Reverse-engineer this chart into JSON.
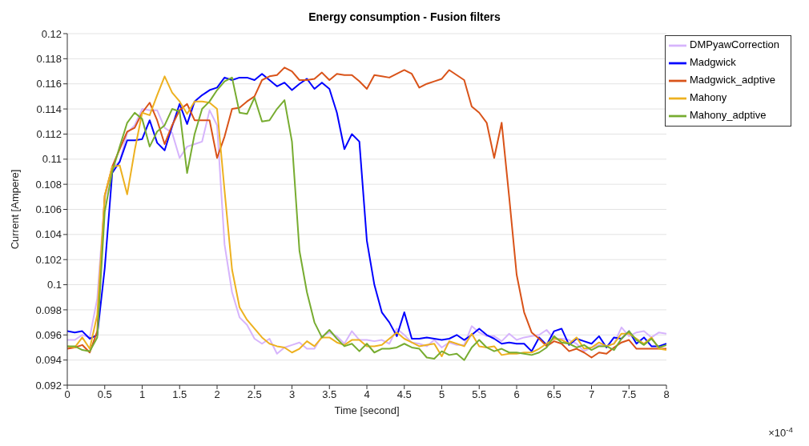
{
  "chart_data": {
    "type": "line",
    "title": "Energy consumption - Fusion filters",
    "xlabel": "Time [second]",
    "ylabel": "Current [Ampere]",
    "annotations": [
      "×10$^{-4}$"
    ],
    "x": [
      0,
      0.1,
      0.2,
      0.3,
      0.4,
      0.5,
      0.6,
      0.7,
      0.8,
      0.9,
      1,
      1.1,
      1.2,
      1.3,
      1.4,
      1.5,
      1.6,
      1.7,
      1.8,
      1.9,
      2,
      2.1,
      2.2,
      2.3,
      2.4,
      2.5,
      2.6,
      2.7,
      2.8,
      2.9,
      3,
      3.1,
      3.2,
      3.3,
      3.4,
      3.5,
      3.6,
      3.7,
      3.8,
      3.9,
      4,
      4.1,
      4.2,
      4.3,
      4.4,
      4.5,
      4.6,
      4.7,
      4.8,
      4.9,
      5,
      5.1,
      5.2,
      5.3,
      5.4,
      5.5,
      5.6,
      5.7,
      5.8,
      5.9,
      6,
      6.1,
      6.2,
      6.3,
      6.4,
      6.5,
      6.6,
      6.7,
      6.8,
      6.9,
      7,
      7.1,
      7.2,
      7.3,
      7.4,
      7.5,
      7.6,
      7.7,
      7.8,
      7.9,
      8
    ],
    "series": [
      {
        "name": "DMPyawCorrection",
        "color": "#d6b4fc",
        "values": [
          0.0956,
          0.0956,
          0.096,
          0.0958,
          0.0989,
          0.1069,
          0.1093,
          0.1098,
          0.1121,
          0.1127,
          0.114,
          0.1139,
          0.1139,
          0.1125,
          0.1121,
          0.1101,
          0.111,
          0.1112,
          0.1114,
          0.1139,
          0.1127,
          0.1032,
          0.0994,
          0.0974,
          0.0968,
          0.0957,
          0.0953,
          0.0957,
          0.0945,
          0.095,
          0.0952,
          0.0954,
          0.0949,
          0.0949,
          0.0959,
          0.0962,
          0.0959,
          0.0953,
          0.0963,
          0.0956,
          0.0956,
          0.0955,
          0.0956,
          0.0953,
          0.0965,
          0.096,
          0.0954,
          0.0953,
          0.0951,
          0.0956,
          0.095,
          0.0954,
          0.0952,
          0.0952,
          0.0967,
          0.0962,
          0.0959,
          0.0959,
          0.0955,
          0.0961,
          0.0956,
          0.0958,
          0.0959,
          0.096,
          0.0964,
          0.0957,
          0.0957,
          0.0956,
          0.0953,
          0.0947,
          0.095,
          0.0952,
          0.0951,
          0.0953,
          0.0966,
          0.0959,
          0.0962,
          0.0963,
          0.0958,
          0.0962,
          0.0961
        ]
      },
      {
        "name": "Madgwick",
        "color": "#0000ff",
        "values": [
          0.0963,
          0.0962,
          0.0963,
          0.0957,
          0.096,
          0.1013,
          0.1089,
          0.1098,
          0.1115,
          0.1115,
          0.1116,
          0.1131,
          0.1113,
          0.1107,
          0.1126,
          0.1144,
          0.1128,
          0.1146,
          0.1151,
          0.1155,
          0.1157,
          0.1165,
          0.1163,
          0.1165,
          0.1165,
          0.1163,
          0.1168,
          0.1163,
          0.1158,
          0.1161,
          0.1155,
          0.116,
          0.1164,
          0.1156,
          0.1161,
          0.1156,
          0.1137,
          0.1108,
          0.112,
          0.1114,
          0.1035,
          0.1,
          0.0978,
          0.097,
          0.0959,
          0.0978,
          0.0957,
          0.0957,
          0.0958,
          0.0957,
          0.0956,
          0.0957,
          0.096,
          0.0956,
          0.096,
          0.0965,
          0.096,
          0.0957,
          0.0953,
          0.0954,
          0.0953,
          0.0953,
          0.0947,
          0.0958,
          0.0952,
          0.0963,
          0.0965,
          0.0952,
          0.0957,
          0.0955,
          0.0953,
          0.0959,
          0.095,
          0.0958,
          0.0957,
          0.0963,
          0.0953,
          0.0958,
          0.0951,
          0.0951,
          0.0953
        ]
      },
      {
        "name": "Madgwick_adptive",
        "color": "#d95319",
        "values": [
          0.0949,
          0.095,
          0.0952,
          0.0946,
          0.0963,
          0.1071,
          0.1094,
          0.1108,
          0.1122,
          0.1125,
          0.1137,
          0.1145,
          0.1131,
          0.1112,
          0.1127,
          0.1139,
          0.1144,
          0.1131,
          0.1131,
          0.1131,
          0.1101,
          0.1118,
          0.114,
          0.1141,
          0.1146,
          0.115,
          0.1163,
          0.1166,
          0.1167,
          0.1173,
          0.117,
          0.1163,
          0.1163,
          0.1164,
          0.1169,
          0.1163,
          0.1168,
          0.1167,
          0.1167,
          0.1162,
          0.1156,
          0.1167,
          0.1166,
          0.1165,
          0.1168,
          0.1171,
          0.1168,
          0.1157,
          0.116,
          0.1162,
          0.1164,
          0.1171,
          0.1167,
          0.1163,
          0.1142,
          0.1137,
          0.1129,
          0.1101,
          0.1129,
          0.107,
          0.1008,
          0.0978,
          0.0962,
          0.0957,
          0.0951,
          0.0955,
          0.0953,
          0.0947,
          0.0949,
          0.0946,
          0.0942,
          0.0946,
          0.0945,
          0.095,
          0.0954,
          0.0956,
          0.0949,
          0.0949,
          0.0949,
          0.0949,
          0.0949
        ]
      },
      {
        "name": "Mahony",
        "color": "#edb120",
        "values": [
          0.0951,
          0.095,
          0.0958,
          0.0949,
          0.0976,
          0.1071,
          0.1094,
          0.1095,
          0.1072,
          0.1107,
          0.1137,
          0.1135,
          0.1151,
          0.1166,
          0.1153,
          0.1146,
          0.1136,
          0.1146,
          0.1146,
          0.1145,
          0.114,
          0.1075,
          0.1012,
          0.0982,
          0.0972,
          0.0965,
          0.0958,
          0.0953,
          0.0951,
          0.095,
          0.0946,
          0.0949,
          0.0955,
          0.0951,
          0.0958,
          0.0958,
          0.0954,
          0.0952,
          0.0956,
          0.0956,
          0.0951,
          0.0951,
          0.0952,
          0.0957,
          0.0962,
          0.0957,
          0.0954,
          0.0951,
          0.0952,
          0.0953,
          0.0943,
          0.0955,
          0.0953,
          0.0951,
          0.0961,
          0.0951,
          0.095,
          0.0951,
          0.0944,
          0.0945,
          0.0945,
          0.0946,
          0.0946,
          0.0949,
          0.0953,
          0.0957,
          0.0956,
          0.0953,
          0.0958,
          0.0949,
          0.095,
          0.0954,
          0.0951,
          0.0953,
          0.0961,
          0.0961,
          0.0957,
          0.0953,
          0.0958,
          0.0949,
          0.0948
        ]
      },
      {
        "name": "Mahony_adptive",
        "color": "#77ac30",
        "values": [
          0.0951,
          0.0951,
          0.0948,
          0.0947,
          0.0958,
          0.1058,
          0.109,
          0.111,
          0.1129,
          0.1137,
          0.1132,
          0.111,
          0.1122,
          0.1127,
          0.114,
          0.1138,
          0.1089,
          0.112,
          0.114,
          0.1146,
          0.1155,
          0.1162,
          0.1165,
          0.1137,
          0.1136,
          0.1149,
          0.113,
          0.1131,
          0.114,
          0.1147,
          0.1114,
          0.1027,
          0.0994,
          0.097,
          0.0958,
          0.0964,
          0.0957,
          0.0951,
          0.0953,
          0.0947,
          0.0953,
          0.0946,
          0.0949,
          0.0949,
          0.095,
          0.0953,
          0.095,
          0.0949,
          0.0942,
          0.0941,
          0.0947,
          0.0944,
          0.0945,
          0.094,
          0.095,
          0.0956,
          0.095,
          0.0947,
          0.0949,
          0.0946,
          0.0946,
          0.0945,
          0.0944,
          0.0946,
          0.095,
          0.0959,
          0.0954,
          0.0953,
          0.095,
          0.0952,
          0.0948,
          0.0951,
          0.0951,
          0.0948,
          0.0957,
          0.0963,
          0.0956,
          0.0952,
          0.0957,
          0.095,
          0.0952
        ]
      }
    ],
    "xlim": [
      0,
      8
    ],
    "xticks": [
      0,
      0.5,
      1,
      1.5,
      2,
      2.5,
      3,
      3.5,
      4,
      4.5,
      5,
      5.5,
      6,
      6.5,
      7,
      7.5,
      8
    ],
    "ylim": [
      0.092,
      0.12
    ],
    "yticks": [
      0.092,
      0.094,
      0.096,
      0.098,
      0.1,
      0.102,
      0.104,
      0.106,
      0.108,
      0.11,
      0.112,
      0.114,
      0.116,
      0.118,
      0.12
    ],
    "grid": "y",
    "legend": "top right",
    "marker": "none",
    "line_style": "solid"
  }
}
